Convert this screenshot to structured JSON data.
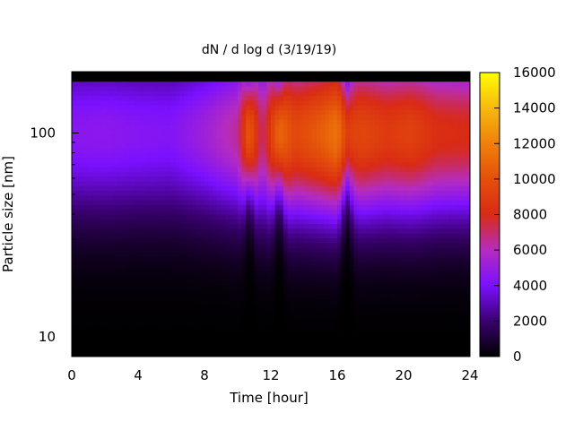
{
  "chart_data": {
    "type": "heatmap",
    "title": "dN / d log d (3/19/19)",
    "xlabel": "Time [hour]",
    "ylabel": "Particle size [nm]",
    "xlim": [
      0,
      24
    ],
    "ylim": [
      8,
      200
    ],
    "y_scale": "log",
    "x_ticks": [
      0,
      4,
      8,
      12,
      16,
      20,
      24
    ],
    "y_ticks": [
      10,
      100
    ],
    "colorbar": {
      "range": [
        0,
        16000
      ],
      "ticks": [
        0,
        2000,
        4000,
        6000,
        8000,
        10000,
        12000,
        14000,
        16000
      ],
      "colormap": "black-purple-red-orange-yellow"
    },
    "colormap_stops": [
      {
        "value": 0,
        "color": "#000000"
      },
      {
        "value": 2000,
        "color": "#3a0070"
      },
      {
        "value": 4000,
        "color": "#7a10ff"
      },
      {
        "value": 6000,
        "color": "#b52cbf"
      },
      {
        "value": 8000,
        "color": "#d92b14"
      },
      {
        "value": 10000,
        "color": "#e4500a"
      },
      {
        "value": 12000,
        "color": "#f0800a"
      },
      {
        "value": 14000,
        "color": "#f7b80f"
      },
      {
        "value": 16000,
        "color": "#ffff00"
      }
    ],
    "grid": false,
    "approximate_profile": {
      "description": "size distribution peak near 100 nm",
      "time_hours": [
        0,
        2,
        4,
        6,
        8,
        10,
        10.7,
        11.5,
        12.5,
        13.5,
        15,
        16,
        16.6,
        17.5,
        19,
        20.5,
        22,
        24
      ],
      "peak_dNdlogd": [
        4500,
        4600,
        4400,
        4300,
        5200,
        6500,
        10500,
        6800,
        11000,
        9500,
        10500,
        11500,
        9000,
        9500,
        8800,
        9200,
        8200,
        8000
      ],
      "bursts_hours": [
        10.7,
        12.5,
        16.6
      ]
    }
  }
}
